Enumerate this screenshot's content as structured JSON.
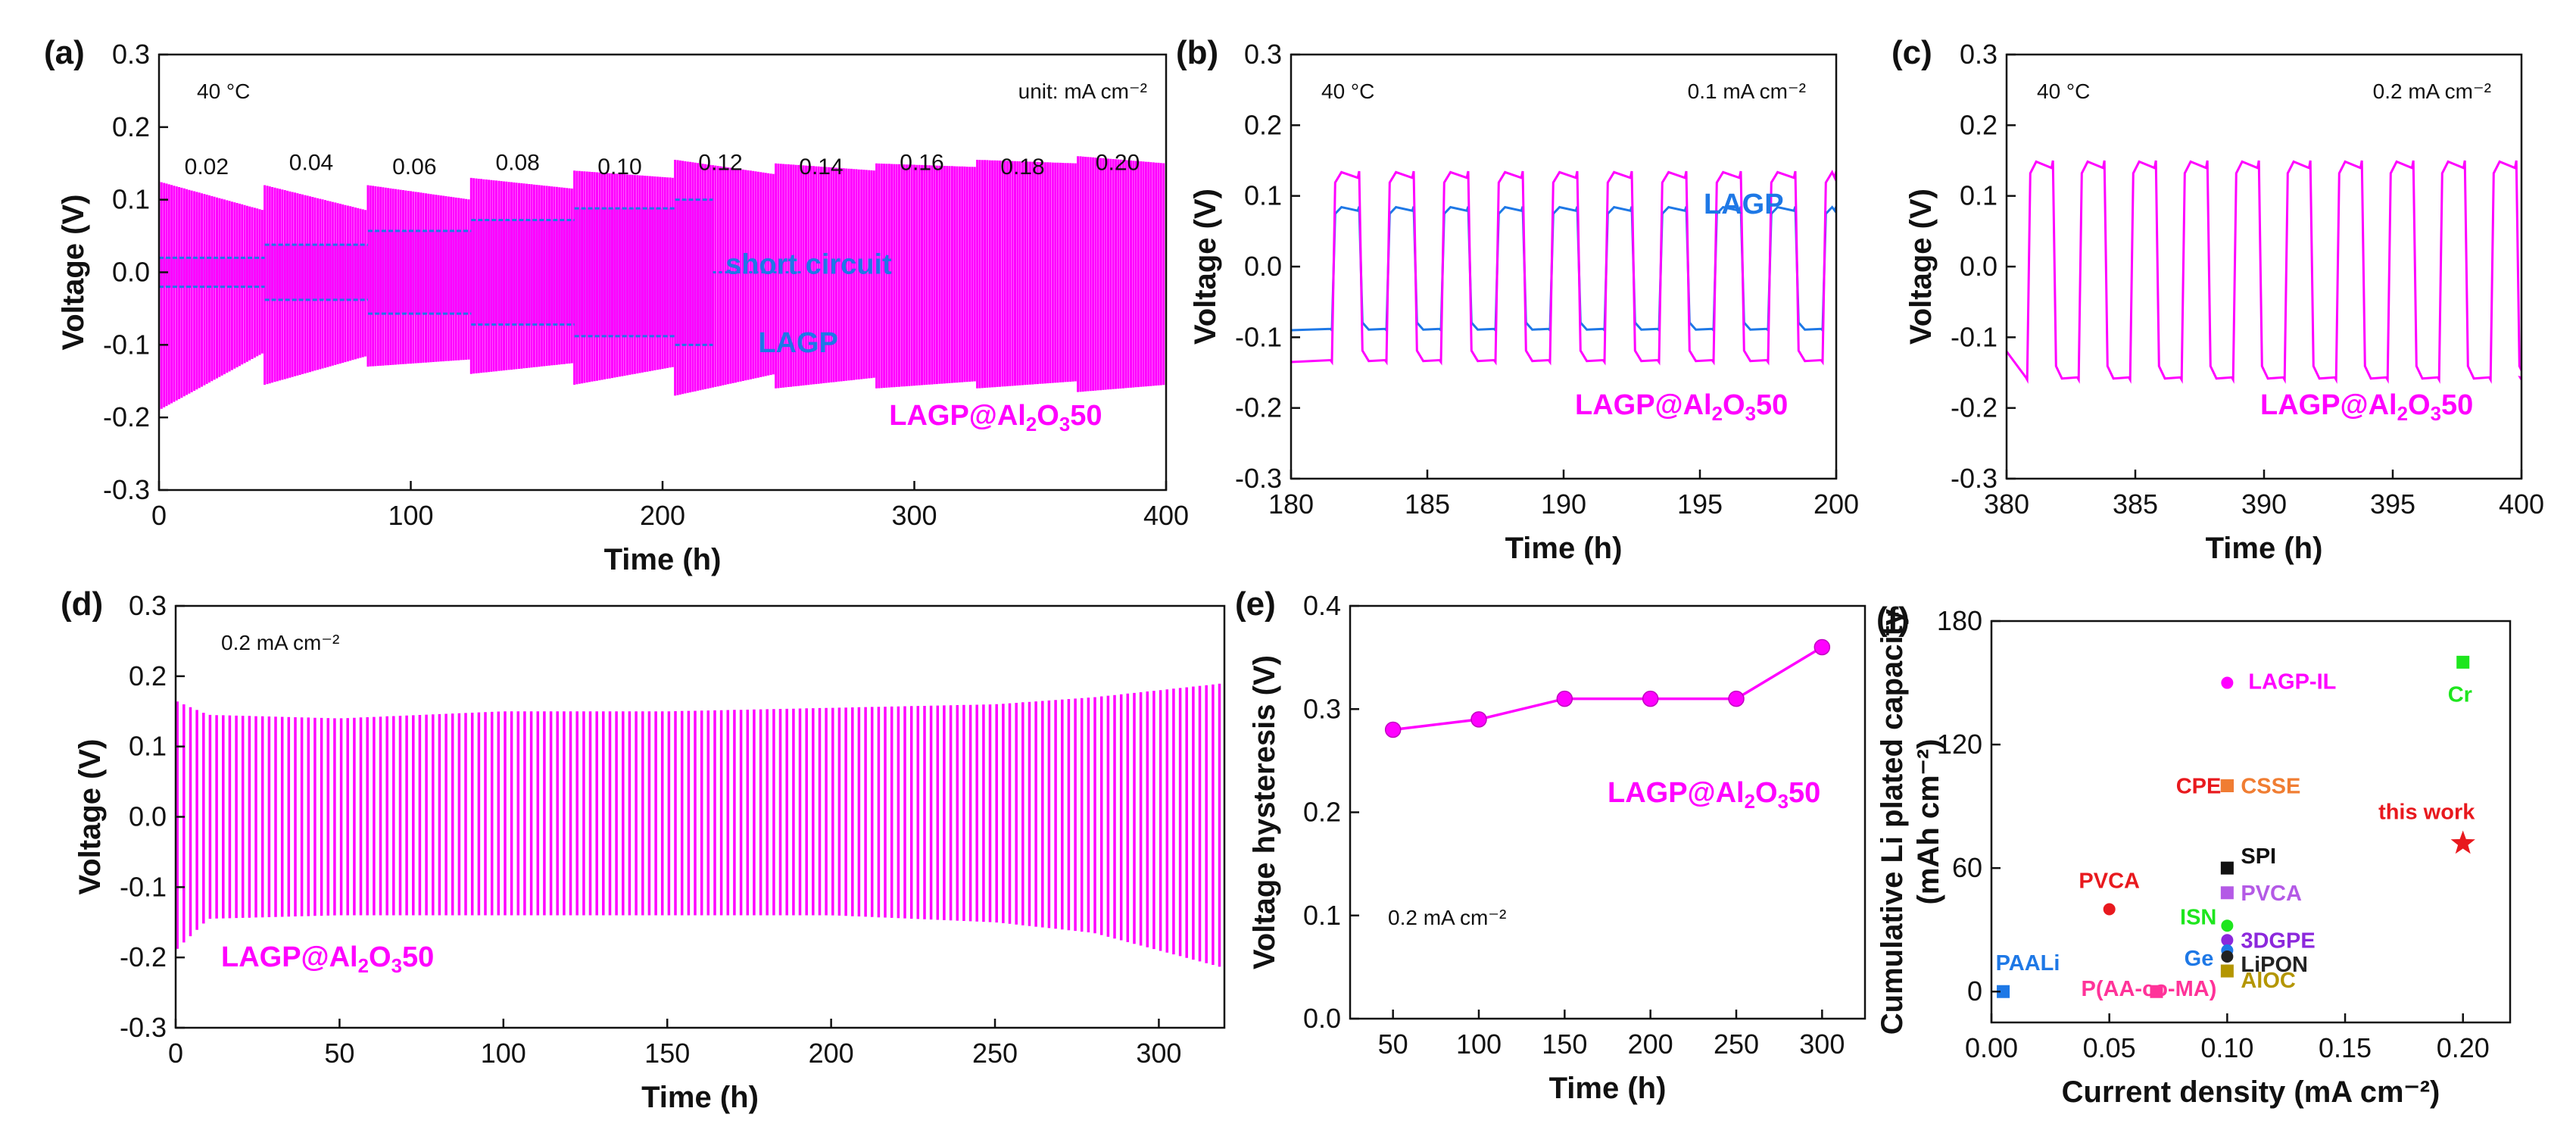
{
  "colors": {
    "pink": "#ff00ff",
    "blue": "#1e78e6",
    "overlap": "#7b2cf0"
  },
  "panels": [
    {
      "id": "a",
      "label": "(a)",
      "xlabel": "Time (h)",
      "ylabel": "Voltage (V)",
      "xlim": [
        0,
        400
      ],
      "ylim": [
        -0.3,
        0.3
      ],
      "xticks": [
        0,
        100,
        200,
        300,
        400
      ],
      "yticks": [
        -0.3,
        -0.2,
        -0.1,
        0.0,
        0.1,
        0.2,
        0.3
      ],
      "annotations": {
        "temp": "40 °C",
        "unit": "unit: mA cm⁻²",
        "short": "short circuit"
      },
      "series_labels": {
        "lagp": "LAGP",
        "coated": "LAGP@Al2O350"
      },
      "currents": [
        "0.02",
        "0.04",
        "0.06",
        "0.08",
        "0.10",
        "0.12",
        "0.14",
        "0.16",
        "0.18",
        "0.20"
      ]
    },
    {
      "id": "b",
      "label": "(b)",
      "xlabel": "Time (h)",
      "ylabel": "Voltage (V)",
      "xlim": [
        180,
        200
      ],
      "ylim": [
        -0.3,
        0.3
      ],
      "xticks": [
        180,
        185,
        190,
        195,
        200
      ],
      "yticks": [
        -0.3,
        -0.2,
        -0.1,
        0.0,
        0.1,
        0.2,
        0.3
      ],
      "annotations": {
        "temp": "40 °C",
        "current": "0.1 mA cm⁻²"
      },
      "series_labels": {
        "lagp": "LAGP",
        "coated": "LAGP@Al2O350"
      }
    },
    {
      "id": "c",
      "label": "(c)",
      "xlabel": "Time (h)",
      "ylabel": "Voltage (V)",
      "xlim": [
        380,
        400
      ],
      "ylim": [
        -0.3,
        0.3
      ],
      "xticks": [
        380,
        385,
        390,
        395,
        400
      ],
      "yticks": [
        -0.3,
        -0.2,
        -0.1,
        0.0,
        0.1,
        0.2,
        0.3
      ],
      "annotations": {
        "temp": "40 °C",
        "current": "0.2 mA cm⁻²"
      },
      "series_labels": {
        "coated": "LAGP@Al2O350"
      }
    },
    {
      "id": "d",
      "label": "(d)",
      "xlabel": "Time (h)",
      "ylabel": "Voltage (V)",
      "xlim": [
        0,
        320
      ],
      "ylim": [
        -0.3,
        0.3
      ],
      "xticks": [
        0,
        50,
        100,
        150,
        200,
        250,
        300
      ],
      "yticks": [
        -0.3,
        -0.2,
        -0.1,
        0.0,
        0.1,
        0.2,
        0.3
      ],
      "annotations": {
        "current": "0.2 mA cm⁻²"
      },
      "series_labels": {
        "coated": "LAGP@Al2O350"
      }
    },
    {
      "id": "e",
      "label": "(e)",
      "xlabel": "Time (h)",
      "ylabel": "Voltage hysteresis (V)",
      "xlim": [
        25,
        325
      ],
      "ylim": [
        0,
        0.4
      ],
      "xticks": [
        50,
        100,
        150,
        200,
        250,
        300
      ],
      "yticks": [
        0.0,
        0.1,
        0.2,
        0.3,
        0.4
      ],
      "annotations": {
        "current": "0.2 mA cm⁻²"
      },
      "series_labels": {
        "coated": "LAGP@Al2O350"
      }
    },
    {
      "id": "f",
      "label": "(f)",
      "xlabel": "Current density (mA cm⁻²)",
      "ylabel": "Cumulative Li plated capacity",
      "ylabel2": "(mAh cm⁻²)",
      "xlim": [
        0,
        0.22
      ],
      "ylim": [
        -15,
        180
      ],
      "xticks": [
        0.0,
        0.05,
        0.1,
        0.15,
        0.2
      ],
      "yticks": [
        0,
        60,
        120,
        180
      ]
    }
  ],
  "chart_data": [
    {
      "panel": "a",
      "type": "line",
      "title": "",
      "xlabel": "Time (h)",
      "ylabel": "Voltage (V)",
      "xlim": [
        0,
        400
      ],
      "ylim": [
        -0.3,
        0.3
      ],
      "segments": [
        {
          "current": 0.02,
          "t": [
            0,
            42
          ],
          "lagp_amp": 0.02,
          "coated_top": [
            0.125,
            0.085
          ],
          "coated_bottom": [
            -0.19,
            -0.11
          ]
        },
        {
          "current": 0.04,
          "t": [
            42,
            83
          ],
          "lagp_amp": 0.038,
          "coated_top": [
            0.12,
            0.085
          ],
          "coated_bottom": [
            -0.155,
            -0.115
          ]
        },
        {
          "current": 0.06,
          "t": [
            83,
            124
          ],
          "lagp_amp": 0.057,
          "coated_top": [
            0.12,
            0.1
          ],
          "coated_bottom": [
            -0.13,
            -0.12
          ]
        },
        {
          "current": 0.08,
          "t": [
            124,
            165
          ],
          "lagp_amp": 0.072,
          "coated_top": [
            0.13,
            0.115
          ],
          "coated_bottom": [
            -0.14,
            -0.125
          ]
        },
        {
          "current": 0.1,
          "t": [
            165,
            205
          ],
          "lagp_amp": 0.088,
          "coated_top": [
            0.14,
            0.13
          ],
          "coated_bottom": [
            -0.155,
            -0.13
          ]
        },
        {
          "current": 0.12,
          "t": [
            205,
            245
          ],
          "lagp_amp": 0.1,
          "coated_top": [
            0.155,
            0.135
          ],
          "coated_bottom": [
            -0.17,
            -0.14
          ]
        },
        {
          "current": 0.14,
          "t": [
            245,
            285
          ],
          "lagp_amp": null,
          "coated_top": [
            0.15,
            0.14
          ],
          "coated_bottom": [
            -0.16,
            -0.145
          ]
        },
        {
          "current": 0.16,
          "t": [
            285,
            325
          ],
          "lagp_amp": null,
          "coated_top": [
            0.15,
            0.145
          ],
          "coated_bottom": [
            -0.16,
            -0.15
          ]
        },
        {
          "current": 0.18,
          "t": [
            325,
            365
          ],
          "lagp_amp": null,
          "coated_top": [
            0.155,
            0.15
          ],
          "coated_bottom": [
            -0.16,
            -0.15
          ]
        },
        {
          "current": 0.2,
          "t": [
            365,
            400
          ],
          "lagp_amp": null,
          "coated_top": [
            0.16,
            0.15
          ],
          "coated_bottom": [
            -0.165,
            -0.155
          ]
        }
      ],
      "lagp_short_circuit_time": 220
    },
    {
      "panel": "b",
      "type": "line",
      "xlabel": "Time (h)",
      "ylabel": "Voltage (V)",
      "xlim": [
        180,
        200
      ],
      "ylim": [
        -0.3,
        0.3
      ],
      "period_h": 2,
      "first_rise_h": 181.5,
      "series": [
        {
          "name": "LAGP",
          "high": 0.085,
          "low": -0.09
        },
        {
          "name": "LAGP@Al2O350",
          "high": 0.135,
          "low": -0.135
        }
      ]
    },
    {
      "panel": "c",
      "type": "line",
      "xlabel": "Time (h)",
      "ylabel": "Voltage (V)",
      "xlim": [
        380,
        400
      ],
      "ylim": [
        -0.3,
        0.3
      ],
      "period_h": 2,
      "first_rise_h": 380.8,
      "series": [
        {
          "name": "LAGP@Al2O350",
          "high": 0.15,
          "low": -0.16
        }
      ]
    },
    {
      "panel": "d",
      "type": "line",
      "xlabel": "Time (h)",
      "ylabel": "Voltage (V)",
      "xlim": [
        0,
        320
      ],
      "ylim": [
        -0.3,
        0.3
      ],
      "envelope_t": [
        0,
        10,
        50,
        100,
        150,
        200,
        250,
        280,
        320
      ],
      "envelope_top": [
        0.165,
        0.145,
        0.14,
        0.15,
        0.15,
        0.155,
        0.16,
        0.17,
        0.19
      ],
      "envelope_bottom": [
        -0.19,
        -0.145,
        -0.14,
        -0.14,
        -0.14,
        -0.14,
        -0.15,
        -0.165,
        -0.215
      ]
    },
    {
      "panel": "e",
      "type": "line",
      "xlabel": "Time (h)",
      "ylabel": "Voltage hysteresis (V)",
      "xlim": [
        25,
        325
      ],
      "ylim": [
        0,
        0.4
      ],
      "series": [
        {
          "name": "LAGP@Al2O350",
          "x": [
            50,
            100,
            150,
            200,
            250,
            300
          ],
          "y": [
            0.28,
            0.29,
            0.31,
            0.31,
            0.31,
            0.36
          ]
        }
      ]
    },
    {
      "panel": "f",
      "type": "scatter",
      "xlabel": "Current density (mA cm⁻²)",
      "ylabel": "Cumulative Li plated capacity (mAh cm⁻²)",
      "xlim": [
        0,
        0.22
      ],
      "ylim": [
        -15,
        180
      ],
      "points": [
        {
          "label": "PAALi",
          "x": 0.005,
          "y": 0,
          "color": "#1e78e6",
          "marker": "square"
        },
        {
          "label": "P(AA-co-MA)",
          "x": 0.07,
          "y": 0,
          "color": "#ff3399",
          "marker": "square"
        },
        {
          "label": "PVCA",
          "x": 0.05,
          "y": 40,
          "color": "#e8191e",
          "marker": "circle"
        },
        {
          "label": "LAGP-IL",
          "x": 0.1,
          "y": 150,
          "color": "#ff00ff",
          "marker": "circle"
        },
        {
          "label": "CPE",
          "x": 0.1,
          "y": 100,
          "color": "#e8191e",
          "marker": "square"
        },
        {
          "label": "CSSE",
          "x": 0.1,
          "y": 100,
          "color": "#f07d32",
          "marker": "square"
        },
        {
          "label": "SPI",
          "x": 0.1,
          "y": 60,
          "color": "#111111",
          "marker": "square"
        },
        {
          "label": "PVCA",
          "x": 0.1,
          "y": 48,
          "color": "#b45ae6",
          "marker": "square"
        },
        {
          "label": "ISN",
          "x": 0.1,
          "y": 32,
          "color": "#1ee61e",
          "marker": "circle"
        },
        {
          "label": "3DGPE",
          "x": 0.1,
          "y": 25,
          "color": "#8c28dc",
          "marker": "circle"
        },
        {
          "label": "Ge",
          "x": 0.1,
          "y": 20,
          "color": "#1e78e6",
          "marker": "circle"
        },
        {
          "label": "LiPON",
          "x": 0.1,
          "y": 17,
          "color": "#222222",
          "marker": "circle"
        },
        {
          "label": "AlOC",
          "x": 0.1,
          "y": 10,
          "color": "#b49600",
          "marker": "square"
        },
        {
          "label": "Cr",
          "x": 0.2,
          "y": 160,
          "color": "#1ee61e",
          "marker": "square"
        },
        {
          "label": "this work",
          "x": 0.2,
          "y": 72,
          "color": "#e8191e",
          "marker": "star"
        }
      ]
    }
  ]
}
